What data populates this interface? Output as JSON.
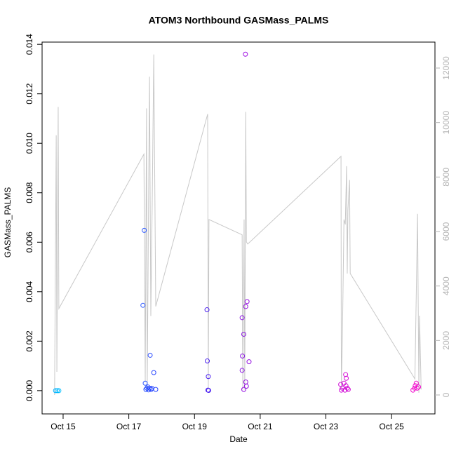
{
  "chart_data": {
    "type": "scatter",
    "title": "ATOM3 Northbound GASMass_PALMS",
    "x_label": "Date",
    "y_label": "GASMass_PALMS",
    "xlim": [
      14.36,
      26.32
    ],
    "xticks": [
      {
        "value": 15,
        "label": "Oct 15"
      },
      {
        "value": 17,
        "label": "Oct 17"
      },
      {
        "value": 19,
        "label": "Oct 19"
      },
      {
        "value": 21,
        "label": "Oct 21"
      },
      {
        "value": 23,
        "label": "Oct 23"
      },
      {
        "value": 25,
        "label": "Oct 25"
      }
    ],
    "ylim": [
      -0.00094,
      0.01409
    ],
    "yticks": [
      {
        "value": 0,
        "label": "0.000"
      },
      {
        "value": 0.002,
        "label": "0.002"
      },
      {
        "value": 0.004,
        "label": "0.004"
      },
      {
        "value": 0.006,
        "label": "0.006"
      },
      {
        "value": 0.008,
        "label": "0.008"
      },
      {
        "value": 0.01,
        "label": "0.010"
      },
      {
        "value": 0.012,
        "label": "0.012"
      },
      {
        "value": 0.014,
        "label": "0.014"
      }
    ],
    "y2lim": [
      -695,
      12953
    ],
    "y2ticks": [
      0,
      2000,
      4000,
      6000,
      8000,
      10000,
      12000
    ],
    "y2_color": "#b4b4b4",
    "series": [
      {
        "x": [
          14.77,
          14.82,
          14.87,
          17.43,
          17.47,
          17.5,
          17.52,
          17.55,
          17.58,
          17.6,
          17.63,
          17.65,
          17.68,
          17.7,
          17.76,
          17.82,
          19.38,
          19.39,
          19.42,
          19.41,
          19.43,
          20.55,
          20.45,
          20.5,
          20.46,
          20.45,
          20.56,
          20.6,
          20.66,
          20.56,
          20.58,
          20.5,
          23.45,
          23.47,
          23.5,
          23.55,
          23.6,
          23.62,
          23.61,
          23.65,
          23.58,
          23.68,
          25.65,
          25.7,
          25.72,
          25.75,
          25.78,
          25.82
        ],
        "values": [
          0,
          0,
          0,
          0.00345,
          0.00648,
          0.0003,
          5e-05,
          0.0001,
          0.00015,
          3e-05,
          0.0001,
          0.00143,
          5e-05,
          0.0001,
          0.00073,
          5e-05,
          0.00327,
          0.0012,
          0.00057,
          2e-05,
          1e-05,
          0.0136,
          0.00295,
          0.00228,
          0.0014,
          0.00082,
          0.0034,
          0.0036,
          0.00117,
          0.00035,
          0.00018,
          5e-05,
          0.00025,
          2e-05,
          0.0001,
          0.0003,
          0.00065,
          0.0005,
          0.0002,
          0.0001,
          2e-05,
          5e-05,
          2e-05,
          0.0001,
          0.0002,
          0.0003,
          0.0001,
          0.00015
        ],
        "colors": [
          "#00b4ff",
          "#00b4ff",
          "#00c0ff",
          "#2f5bff",
          "#2f5bff",
          "#2f5bff",
          "#2a50ff",
          "#2a50ff",
          "#2a50ff",
          "#2a4cff",
          "#2a4cff",
          "#2a4cff",
          "#2a48ff",
          "#2a48ff",
          "#2a48ff",
          "#2a48ff",
          "#4d22f0",
          "#4d22f0",
          "#4d22f0",
          "#4d22f0",
          "#4d22f0",
          "#a012e4",
          "#8c14e4",
          "#8c14e4",
          "#8c14e4",
          "#8c14e4",
          "#9512e0",
          "#9512e0",
          "#9512e0",
          "#9512e0",
          "#9512e0",
          "#9512e0",
          "#d00ed8",
          "#d00ed8",
          "#d00ed8",
          "#d40ed6",
          "#d40ed6",
          "#d40ed6",
          "#d40ed6",
          "#d40ed6",
          "#d40ed6",
          "#d40ed6",
          "#f00ccc",
          "#f00ccc",
          "#f00ccc",
          "#f00ccc",
          "#f00ccc",
          "#f00ccc"
        ]
      },
      {
        "axis": "y2",
        "color": "#c8c8c8",
        "x": [
          14.74,
          14.79,
          14.81,
          14.85,
          14.87,
          17.46,
          17.5,
          17.54,
          17.56,
          17.63,
          17.67,
          17.71,
          17.76,
          17.82,
          19.4,
          19.42,
          19.44,
          20.45,
          20.47,
          20.51,
          20.53,
          20.56,
          20.58,
          20.62,
          23.46,
          23.47,
          23.5,
          23.55,
          23.59,
          23.63,
          23.65,
          23.67,
          23.72,
          23.74,
          25.71,
          25.79,
          25.83,
          25.85,
          25.9
        ],
        "values": [
          0,
          9530,
          850,
          10570,
          3170,
          8840,
          470,
          10520,
          200,
          11680,
          2900,
          6780,
          12500,
          3250,
          10310,
          200,
          6440,
          5880,
          200,
          6440,
          200,
          10390,
          5620,
          5540,
          8760,
          200,
          1960,
          6440,
          6260,
          8400,
          4460,
          6780,
          7890,
          4460,
          590,
          6650,
          80,
          2910,
          200
        ]
      }
    ]
  }
}
